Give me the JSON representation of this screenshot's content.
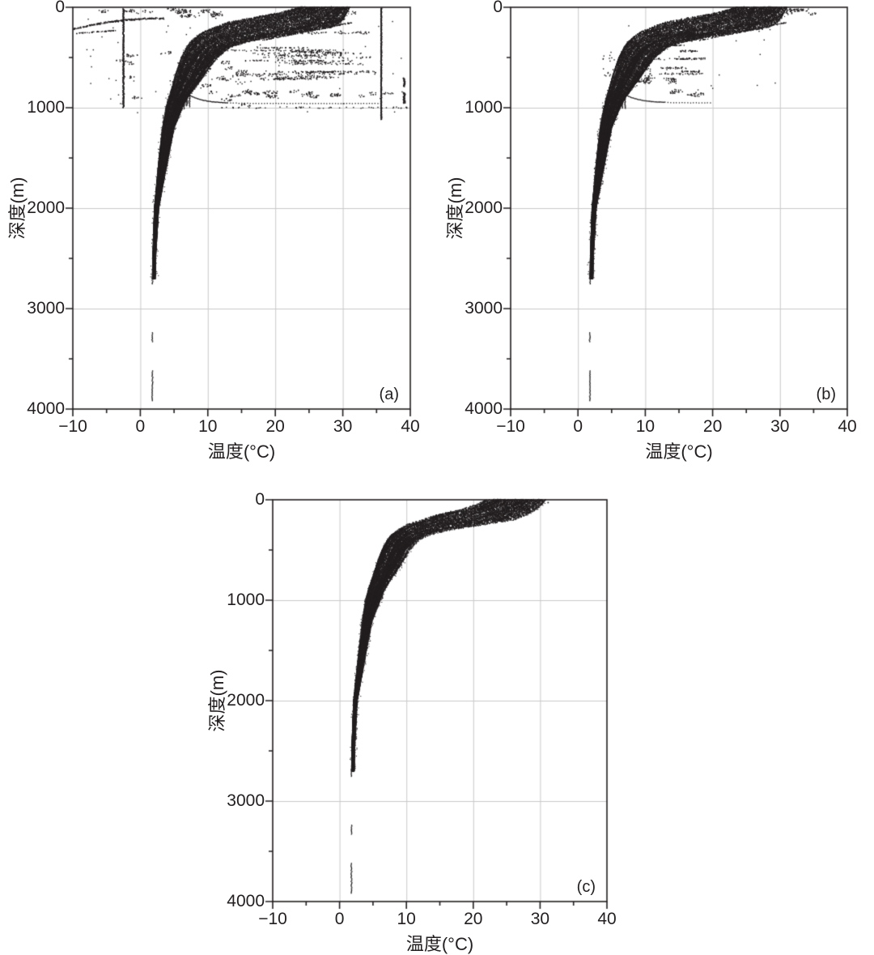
{
  "figure": {
    "background": "#ffffff",
    "point_color": "#231f20",
    "grid_color": "#c9c9c9",
    "axis_color": "#231f20"
  },
  "chart_data": [
    {
      "id": "a",
      "type": "scatter",
      "panel_label": "(a)",
      "xlabel": "温度(°C)",
      "ylabel": "深度(m)",
      "x_range": [
        -10,
        40
      ],
      "y_range": [
        0,
        4000
      ],
      "y_inverted": true,
      "grid": true,
      "x_ticks": [
        -10,
        0,
        10,
        20,
        30,
        40
      ],
      "x_tick_labels": [
        "−10",
        "0",
        "10",
        "20",
        "30",
        "40"
      ],
      "x_minor_ticks": [
        -5,
        5,
        15,
        25,
        35
      ],
      "y_ticks": [
        0,
        1000,
        2000,
        3000,
        4000
      ],
      "y_tick_labels": [
        "0",
        "1000",
        "2000",
        "3000",
        "4000"
      ],
      "y_minor_ticks": [
        500,
        1500,
        2500,
        3500
      ],
      "seed": 101,
      "envelope": {
        "depths": [
          0,
          50,
          100,
          150,
          200,
          250,
          300,
          350,
          400,
          500,
          600,
          700,
          800,
          900,
          1000,
          1200,
          1500,
          2000,
          2500,
          2700
        ],
        "tmin": [
          23.5,
          21,
          17,
          13,
          11,
          9.3,
          8.2,
          7.4,
          6.9,
          6.1,
          5.6,
          5.1,
          4.7,
          4.2,
          3.8,
          3.3,
          2.8,
          2.1,
          1.85,
          1.8
        ],
        "tmax": [
          31,
          30.6,
          30.2,
          29.6,
          28.2,
          24,
          19,
          15.5,
          13.2,
          11.4,
          10.2,
          9.2,
          8.1,
          7.0,
          6.2,
          5.0,
          4.1,
          2.7,
          2.25,
          2.2
        ]
      },
      "tail_segments": [
        [
          2700,
          2760
        ],
        [
          3240,
          3330
        ],
        [
          3620,
          3920
        ]
      ],
      "features": [
        {
          "type": "vline",
          "t": -2.5,
          "d0": 15,
          "d1": 1000,
          "step": 2.5
        },
        {
          "type": "vline",
          "t": 35.7,
          "d0": 8,
          "d1": 1120,
          "step": 2.5
        },
        {
          "type": "vline",
          "t": 39.1,
          "d0": 705,
          "d1": 790,
          "step": 4,
          "w": 2
        },
        {
          "type": "vline",
          "t": 39.1,
          "d0": 850,
          "d1": 955,
          "step": 3,
          "w": 2.5
        },
        {
          "type": "row",
          "t0": -10,
          "t1": 40,
          "d0": 20,
          "d1": 60,
          "n": 70,
          "cluster": true
        },
        {
          "type": "cloud",
          "t0": 4,
          "t1": 12,
          "d0": 5,
          "d1": 95,
          "n": 130,
          "cluster": true
        },
        {
          "type": "streak",
          "p0": [
            -10,
            220
          ],
          "p1": [
            3.5,
            112
          ],
          "n": 230,
          "jd": 7,
          "bend": -30
        },
        {
          "type": "streak",
          "p0": [
            -9.5,
            258
          ],
          "p1": [
            -3.5,
            232
          ],
          "n": 45,
          "jd": 5
        },
        {
          "type": "streak",
          "p0": [
            16,
            300
          ],
          "p1": [
            30.5,
            115
          ],
          "n": 160,
          "jd": 5
        },
        {
          "type": "streak",
          "p0": [
            18,
            330
          ],
          "p1": [
            31.5,
            150
          ],
          "n": 120,
          "jd": 5
        },
        {
          "type": "cloud",
          "t0": -3,
          "t1": 16,
          "d0": 420,
          "d1": 1000,
          "n": 240,
          "cluster": true
        },
        {
          "type": "rows",
          "t0": 9,
          "t1": 36,
          "d0": 140,
          "d1": 720,
          "nrows": 26,
          "n": 950
        },
        {
          "type": "row",
          "t0": 8,
          "t1": 39,
          "d0": 835,
          "d1": 895,
          "n": 150,
          "cluster": true
        },
        {
          "type": "row",
          "t0": 12,
          "t1": 39.5,
          "d0": 993,
          "d1": 1006,
          "n": 50
        },
        {
          "type": "hook",
          "dasym": 958,
          "tjoin": 6.8,
          "djoin": 856,
          "tend": 35.5
        },
        {
          "type": "spikes",
          "temps": [
            4.9,
            5.3,
            5.7,
            6.1,
            6.5,
            6.9,
            7.3
          ],
          "d0": 865,
          "d1": 1020
        },
        {
          "type": "cloud",
          "t0": -9,
          "t1": 39,
          "d0": 70,
          "d1": 1050,
          "n": 60
        }
      ]
    },
    {
      "id": "b",
      "type": "scatter",
      "panel_label": "(b)",
      "xlabel": "温度(°C)",
      "ylabel": "深度(m)",
      "x_range": [
        -10,
        40
      ],
      "y_range": [
        0,
        4000
      ],
      "y_inverted": true,
      "grid": true,
      "x_ticks": [
        -10,
        0,
        10,
        20,
        30,
        40
      ],
      "x_tick_labels": [
        "−10",
        "0",
        "10",
        "20",
        "30",
        "40"
      ],
      "x_minor_ticks": [
        -5,
        5,
        15,
        25,
        35
      ],
      "y_ticks": [
        0,
        1000,
        2000,
        3000,
        4000
      ],
      "y_tick_labels": [
        "0",
        "1000",
        "2000",
        "3000",
        "4000"
      ],
      "y_minor_ticks": [
        500,
        1500,
        2500,
        3500
      ],
      "seed": 202,
      "envelope": {
        "depths": [
          0,
          50,
          100,
          150,
          200,
          250,
          300,
          350,
          400,
          500,
          600,
          700,
          800,
          900,
          1000,
          1200,
          1500,
          2000,
          2500,
          2700
        ],
        "tmin": [
          23.5,
          21,
          17,
          13,
          11,
          9.3,
          8.2,
          7.4,
          6.9,
          6.1,
          5.6,
          5.1,
          4.7,
          4.2,
          3.8,
          3.3,
          2.8,
          2.1,
          1.85,
          1.8
        ],
        "tmax": [
          31,
          30.6,
          30.2,
          29.6,
          28.2,
          24,
          19,
          15.5,
          13.2,
          11.4,
          10.2,
          9.2,
          8.1,
          7.0,
          6.2,
          5.0,
          4.1,
          2.7,
          2.25,
          2.2
        ]
      },
      "tail_segments": [
        [
          2700,
          2760
        ],
        [
          3240,
          3330
        ],
        [
          3620,
          3920
        ]
      ],
      "features": [
        {
          "type": "rows",
          "t0": 9,
          "t1": 20.5,
          "d0": 260,
          "d1": 720,
          "nrows": 14,
          "n": 400
        },
        {
          "type": "streak",
          "p0": [
            16,
            300
          ],
          "p1": [
            30,
            115
          ],
          "n": 150,
          "jd": 5
        },
        {
          "type": "streak",
          "p0": [
            18,
            330
          ],
          "p1": [
            31,
            150
          ],
          "n": 110,
          "jd": 5
        },
        {
          "type": "row",
          "t0": 9,
          "t1": 15,
          "d0": 700,
          "d1": 770,
          "n": 60,
          "cluster": true
        },
        {
          "type": "row",
          "t0": 12,
          "t1": 19.5,
          "d0": 820,
          "d1": 875,
          "n": 45,
          "cluster": true
        },
        {
          "type": "hook",
          "dasym": 952,
          "tjoin": 6.8,
          "djoin": 862,
          "tend": 19.8
        },
        {
          "type": "spikes",
          "temps": [
            5.0,
            5.4,
            5.8,
            6.2,
            6.6,
            7.0
          ],
          "d0": 865,
          "d1": 1015
        },
        {
          "type": "row",
          "t0": 28,
          "t1": 35,
          "d0": 10,
          "d1": 75,
          "n": 80,
          "cluster": true
        },
        {
          "type": "cloud",
          "t0": 8.5,
          "t1": 11,
          "d0": 600,
          "d1": 750,
          "n": 40
        },
        {
          "type": "cloud",
          "t0": 3.5,
          "t1": 5.5,
          "d0": 430,
          "d1": 720,
          "n": 18
        },
        {
          "type": "cloud",
          "t0": 6,
          "t1": 30,
          "d0": 100,
          "d1": 900,
          "n": 30
        }
      ]
    },
    {
      "id": "c",
      "type": "scatter",
      "panel_label": "(c)",
      "xlabel": "温度(°C)",
      "ylabel": "深度(m)",
      "x_range": [
        -10,
        40
      ],
      "y_range": [
        0,
        4000
      ],
      "y_inverted": true,
      "grid": true,
      "x_ticks": [
        -10,
        0,
        10,
        20,
        30,
        40
      ],
      "x_tick_labels": [
        "−10",
        "0",
        "10",
        "20",
        "30",
        "40"
      ],
      "x_minor_ticks": [
        -5,
        5,
        15,
        25,
        35
      ],
      "y_ticks": [
        0,
        1000,
        2000,
        3000,
        4000
      ],
      "y_tick_labels": [
        "0",
        "1000",
        "2000",
        "3000",
        "4000"
      ],
      "y_minor_ticks": [
        500,
        1500,
        2500,
        3500
      ],
      "seed": 303,
      "envelope": {
        "depths": [
          0,
          50,
          100,
          150,
          200,
          250,
          300,
          350,
          400,
          500,
          600,
          700,
          800,
          900,
          1000,
          1200,
          1500,
          2000,
          2500,
          2700
        ],
        "tmin": [
          22,
          20.5,
          18,
          14.5,
          12.5,
          10,
          8.8,
          7.8,
          7.2,
          6.4,
          5.8,
          5.3,
          4.8,
          4.3,
          3.9,
          3.4,
          2.9,
          2.1,
          1.85,
          1.8
        ],
        "tmax": [
          30.8,
          30.2,
          29.4,
          28,
          26,
          21.5,
          16.5,
          13.5,
          11.8,
          10.5,
          9.6,
          8.7,
          7.7,
          6.7,
          6.1,
          4.9,
          4.0,
          2.65,
          2.25,
          2.2
        ]
      },
      "tail_segments": [
        [
          2700,
          2760
        ],
        [
          3240,
          3330
        ],
        [
          3620,
          3920
        ]
      ],
      "features": [
        {
          "type": "spikes",
          "temps": [
            5.8,
            6.1,
            6.4
          ],
          "d0": 900,
          "d1": 1015
        },
        {
          "type": "cloud",
          "t0": 3.6,
          "t1": 5.2,
          "d0": 1020,
          "d1": 1220,
          "n": 10
        },
        {
          "type": "dot",
          "t": 31.2,
          "d": 28
        }
      ]
    }
  ]
}
